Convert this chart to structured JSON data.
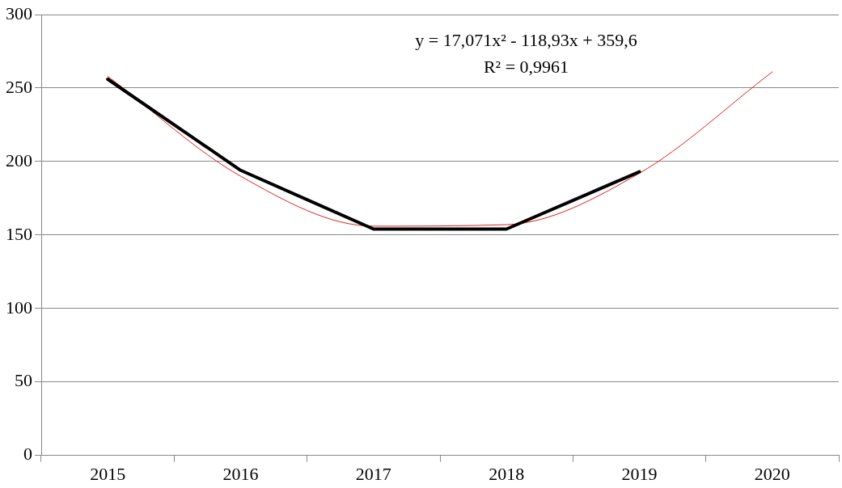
{
  "chart_data": {
    "type": "line",
    "categories": [
      "2015",
      "2016",
      "2017",
      "2018",
      "2019",
      "2020"
    ],
    "series": [
      {
        "color": "#000000",
        "values": [
          256,
          194,
          154,
          154,
          193,
          null
        ]
      },
      {
        "type": "line",
        "color": "#e0201c",
        "values": [
          258,
          190,
          156,
          157,
          192,
          261
        ]
      }
    ],
    "ylim": [
      0,
      300
    ],
    "yticks": [
      0,
      50,
      100,
      150,
      200,
      250,
      300
    ],
    "grid": "y",
    "legend": false,
    "marker": "none",
    "line_style": "solid",
    "annotations": [
      "y = 17,071x² - 118,93x + 359,6",
      "R² = 0,9961"
    ]
  }
}
